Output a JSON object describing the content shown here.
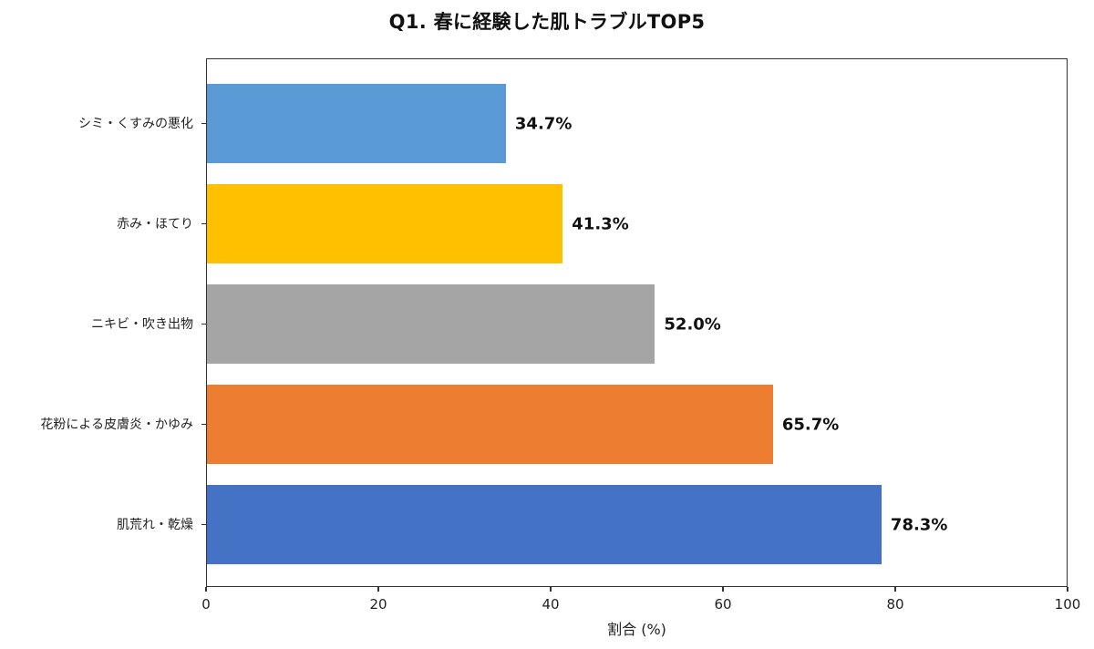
{
  "chart_data": {
    "type": "bar",
    "orientation": "horizontal",
    "title": "Q1. 春に経験した肌トラブルTOP5",
    "xlabel": "割合 (%)",
    "ylabel": "",
    "xlim": [
      0,
      100
    ],
    "xticks": [
      "0",
      "20",
      "40",
      "60",
      "80",
      "100"
    ],
    "grid": false,
    "legend": null,
    "categories": [
      "シミ・くすみの悪化",
      "赤み・ほてり",
      "ニキビ・吹き出物",
      "花粉による皮膚炎・かゆみ",
      "肌荒れ・乾燥"
    ],
    "values": [
      34.7,
      41.3,
      52.0,
      65.7,
      78.3
    ],
    "value_labels": [
      "34.7%",
      "41.3%",
      "52.0%",
      "65.7%",
      "78.3%"
    ],
    "colors": [
      "#5b9bd5",
      "#ffc000",
      "#a5a5a5",
      "#ed7d31",
      "#4472c4"
    ]
  },
  "title": "Q1. 春に経験した肌トラブルTOP5",
  "xaxis": {
    "label": "割合 (%)",
    "ticks": [
      "0",
      "20",
      "40",
      "60",
      "80",
      "100"
    ]
  },
  "bars": [
    {
      "label": "シミ・くすみの悪化",
      "value": 34.7,
      "value_label": "34.7%",
      "color": "#5b9bd5"
    },
    {
      "label": "赤み・ほてり",
      "value": 41.3,
      "value_label": "41.3%",
      "color": "#ffc000"
    },
    {
      "label": "ニキビ・吹き出物",
      "value": 52.0,
      "value_label": "52.0%",
      "color": "#a5a5a5"
    },
    {
      "label": "花粉による皮膚炎・かゆみ",
      "value": 65.7,
      "value_label": "65.7%",
      "color": "#ed7d31"
    },
    {
      "label": "肌荒れ・乾燥",
      "value": 78.3,
      "value_label": "78.3%",
      "color": "#4472c4"
    }
  ]
}
